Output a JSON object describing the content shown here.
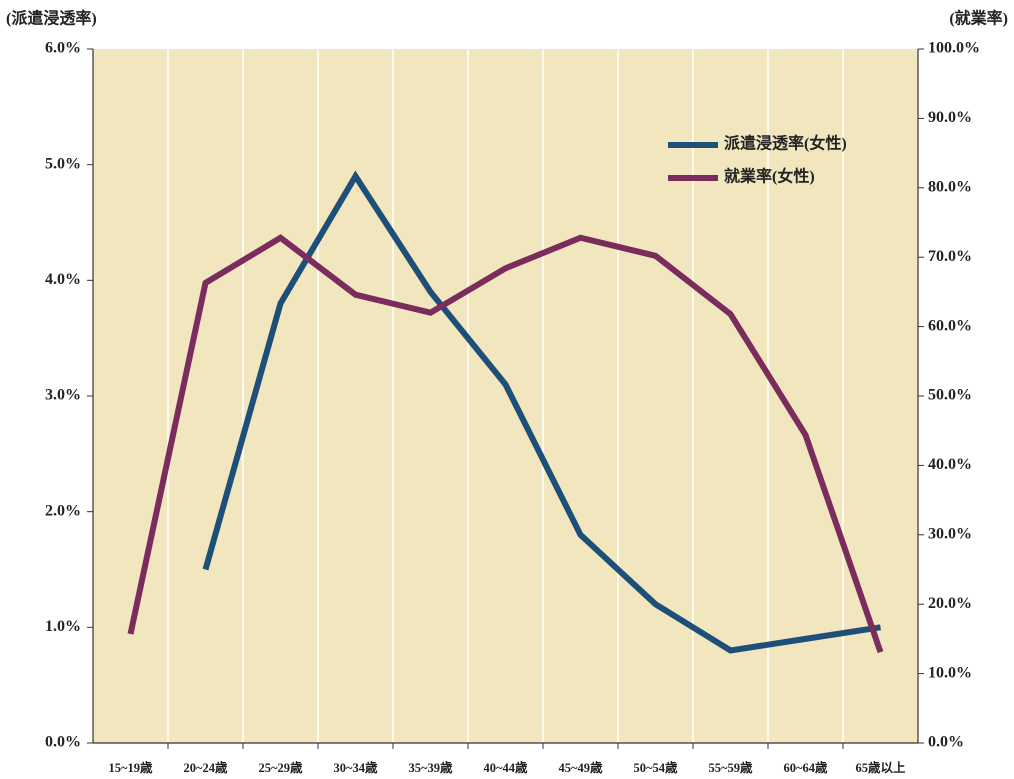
{
  "chart_data": {
    "type": "line",
    "y_axis_label": "(派遣浸透率)",
    "y2_axis_label": "(就業率)",
    "categories": [
      "15~19歳",
      "20~24歳",
      "25~29歳",
      "30~34歳",
      "35~39歳",
      "40~44歳",
      "45~49歳",
      "50~54歳",
      "55~59歳",
      "60~64歳",
      "65歳以上"
    ],
    "series": [
      {
        "name": "派遣浸透率(女性)",
        "color": "#1d4f78",
        "values": [
          null,
          1.5,
          3.8,
          4.9,
          3.9,
          3.1,
          1.8,
          1.2,
          0.8,
          0.9,
          1.0
        ]
      },
      {
        "name": "就業率(女性)",
        "color": "#7a2c5d",
        "axis": "y2",
        "values": [
          15.7,
          66.3,
          72.8,
          64.6,
          62.0,
          68.4,
          72.8,
          70.2,
          61.8,
          44.4,
          13.1
        ]
      }
    ],
    "ylim": [
      0,
      6
    ],
    "yticks": [
      {
        "value": 0,
        "label": "0.0%"
      },
      {
        "value": 1,
        "label": "1.0%"
      },
      {
        "value": 2,
        "label": "2.0%"
      },
      {
        "value": 3,
        "label": "3.0%"
      },
      {
        "value": 4,
        "label": "4.0%"
      },
      {
        "value": 5,
        "label": "5.0%"
      },
      {
        "value": 6,
        "label": "6.0%"
      }
    ],
    "y2lim": [
      0,
      100
    ],
    "y2ticks": [
      {
        "value": 0,
        "label": "0.0%"
      },
      {
        "value": 10,
        "label": "10.0%"
      },
      {
        "value": 20,
        "label": "20.0%"
      },
      {
        "value": 30,
        "label": "30.0%"
      },
      {
        "value": 40,
        "label": "40.0%"
      },
      {
        "value": 50,
        "label": "50.0%"
      },
      {
        "value": 60,
        "label": "60.0%"
      },
      {
        "value": 70,
        "label": "70.0%"
      },
      {
        "value": 80,
        "label": "80.0%"
      },
      {
        "value": 90,
        "label": "90.0%"
      },
      {
        "value": 100,
        "label": "100.0%"
      }
    ],
    "background": "#f2e6bf",
    "legend": "upper right"
  }
}
